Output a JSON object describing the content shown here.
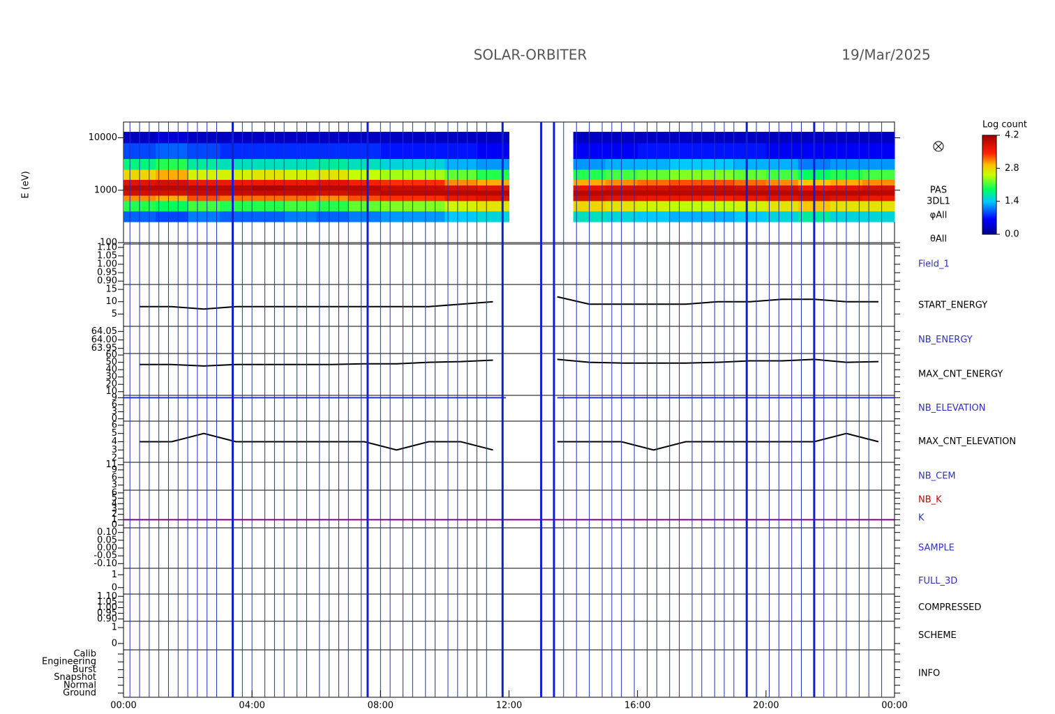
{
  "header": {
    "title": "SOLAR-ORBITER",
    "date": "19/Mar/2025"
  },
  "x_axis": {
    "xlim": [
      0,
      24
    ],
    "xticks": [
      {
        "value": 0,
        "label": "00:00"
      },
      {
        "value": 4,
        "label": "04:00"
      },
      {
        "value": 8,
        "label": "08:00"
      },
      {
        "value": 12,
        "label": "12:00"
      },
      {
        "value": 16,
        "label": "16:00"
      },
      {
        "value": 20,
        "label": "20:00"
      },
      {
        "value": 24,
        "label": "00:00"
      }
    ]
  },
  "events": [
    0.2,
    0.5,
    0.8,
    1.1,
    1.4,
    1.7,
    2.0,
    2.3,
    2.6,
    2.9,
    3.7,
    4.0,
    4.4,
    4.7,
    5.0,
    5.4,
    5.7,
    6.1,
    6.4,
    6.7,
    7.0,
    7.4,
    8.0,
    8.3,
    8.7,
    9.0,
    9.4,
    9.7,
    10.1,
    10.4,
    10.7,
    11.0,
    11.3,
    13.7,
    14.1,
    14.5,
    14.9,
    15.2,
    15.5,
    15.9,
    16.3,
    16.6,
    17.0,
    17.3,
    17.7,
    18.0,
    18.4,
    18.7,
    19.0,
    19.7,
    20.1,
    20.4,
    20.8,
    21.1,
    21.8,
    22.2,
    22.5,
    22.9,
    23.2,
    23.6
  ],
  "strong_events": [
    3.4,
    7.6,
    11.8,
    13.0,
    13.4,
    19.4,
    21.5
  ],
  "chart_data": [
    {
      "type": "heatmap",
      "ylabel": "E (eV)",
      "log_scale": true,
      "ylim": [
        100,
        20000
      ],
      "yticks": [
        100,
        1000,
        10000
      ],
      "labels": [
        "PAS",
        "3DL1",
        "φAll",
        "θAll"
      ],
      "label_color": "#000000",
      "time_bins": [
        0,
        1,
        2,
        3,
        4,
        5,
        6,
        7,
        8,
        9,
        10,
        11,
        12,
        13,
        14,
        15,
        16,
        17,
        18,
        19,
        20,
        21,
        22,
        23,
        24
      ],
      "energy_bins": [
        250,
        400,
        630,
        800,
        1000,
        1250,
        1600,
        2500,
        4000,
        8000,
        13000
      ],
      "log_counts": [
        [
          1.0,
          2.0,
          3.1,
          3.8,
          4.0,
          3.7,
          2.8,
          1.8,
          0.9,
          0.3
        ],
        [
          0.9,
          1.9,
          3.0,
          3.8,
          4.0,
          3.8,
          3.0,
          2.0,
          1.0,
          0.4
        ],
        [
          1.1,
          2.1,
          3.3,
          3.9,
          4.0,
          3.6,
          2.6,
          1.7,
          0.9,
          0.3
        ],
        [
          1.0,
          2.0,
          3.2,
          3.9,
          4.0,
          3.6,
          2.6,
          1.6,
          0.8,
          0.3
        ],
        [
          1.0,
          2.0,
          3.2,
          3.9,
          4.1,
          3.6,
          2.7,
          1.6,
          0.8,
          0.3
        ],
        [
          1.1,
          2.1,
          3.2,
          3.9,
          4.0,
          3.6,
          2.6,
          1.6,
          0.8,
          0.3
        ],
        [
          1.0,
          2.0,
          3.1,
          3.8,
          4.0,
          3.7,
          2.7,
          1.7,
          0.8,
          0.3
        ],
        [
          1.1,
          2.2,
          3.3,
          3.9,
          4.0,
          3.5,
          2.5,
          1.6,
          0.8,
          0.3
        ],
        [
          1.2,
          2.3,
          3.4,
          4.0,
          3.9,
          3.4,
          2.4,
          1.5,
          0.7,
          0.3
        ],
        [
          1.2,
          2.3,
          3.4,
          4.0,
          3.9,
          3.4,
          2.4,
          1.5,
          0.7,
          0.3
        ],
        [
          1.4,
          2.6,
          3.6,
          4.0,
          3.8,
          3.1,
          2.2,
          1.3,
          0.7,
          0.3
        ],
        [
          1.5,
          2.7,
          3.7,
          4.0,
          3.7,
          3.0,
          2.0,
          1.2,
          0.6,
          0.3
        ],
        null,
        null,
        [
          1.6,
          2.8,
          3.8,
          4.0,
          3.7,
          3.0,
          2.0,
          1.2,
          0.6,
          0.3
        ],
        [
          1.5,
          2.7,
          3.7,
          4.0,
          3.8,
          3.1,
          2.1,
          1.3,
          0.6,
          0.3
        ],
        [
          1.4,
          2.6,
          3.6,
          4.0,
          3.8,
          3.2,
          2.2,
          1.3,
          0.7,
          0.3
        ],
        [
          1.3,
          2.5,
          3.6,
          4.0,
          3.9,
          3.3,
          2.3,
          1.4,
          0.7,
          0.3
        ],
        [
          1.3,
          2.5,
          3.5,
          4.0,
          3.9,
          3.3,
          2.3,
          1.4,
          0.7,
          0.3
        ],
        [
          1.4,
          2.6,
          3.6,
          4.0,
          3.8,
          3.2,
          2.2,
          1.3,
          0.7,
          0.3
        ],
        [
          1.5,
          2.7,
          3.7,
          4.0,
          3.8,
          3.1,
          2.1,
          1.3,
          0.6,
          0.3
        ],
        [
          1.7,
          2.9,
          3.8,
          4.0,
          3.6,
          2.9,
          1.9,
          1.1,
          0.6,
          0.3
        ],
        [
          1.5,
          2.7,
          3.7,
          4.0,
          3.7,
          3.0,
          2.0,
          1.2,
          0.6,
          0.3
        ],
        [
          1.5,
          2.7,
          3.6,
          4.0,
          3.8,
          3.1,
          2.1,
          1.2,
          0.6,
          0.3
        ]
      ],
      "colorbar": {
        "title": "Log count",
        "lim": [
          0,
          4.2
        ],
        "ticks": [
          {
            "value": 0,
            "label": "0.0"
          },
          {
            "value": 1.4,
            "label": "1.4"
          },
          {
            "value": 2.8,
            "label": "2.8"
          },
          {
            "value": 4.2,
            "label": "4.2"
          }
        ]
      }
    },
    {
      "type": "line",
      "labels": [
        "Field_1"
      ],
      "label_color": "#3030c0",
      "ylim": [
        0.88,
        1.12
      ],
      "yticks": [
        {
          "value": 0.9,
          "label": "0.90"
        },
        {
          "value": 0.95,
          "label": "0.95"
        },
        {
          "value": 1.0,
          "label": "1.00"
        },
        {
          "value": 1.05,
          "label": "1.05"
        },
        {
          "value": 1.1,
          "label": "1.10"
        }
      ],
      "series": []
    },
    {
      "type": "line",
      "labels": [
        "START_ENERGY"
      ],
      "label_color": "#000000",
      "ylim": [
        0,
        17
      ],
      "yticks": [
        5,
        10,
        15
      ],
      "series": [
        {
          "color": "#000000",
          "x": [
            0.5,
            1.5,
            2.5,
            3.5,
            4.5,
            5.5,
            6.5,
            7.5,
            8.5,
            9.5,
            10.5,
            11.5,
            12.5,
            13.5,
            14.5,
            15.5,
            16.5,
            17.5,
            18.5,
            19.5,
            20.5,
            21.5,
            22.5,
            23.5
          ],
          "values": [
            8,
            8,
            7,
            8,
            8,
            8,
            8,
            8,
            8,
            8,
            9,
            10,
            null,
            12,
            9,
            9,
            9,
            9,
            10,
            10,
            11,
            11,
            10,
            10
          ]
        }
      ]
    },
    {
      "type": "line",
      "labels": [
        "NB_ENERGY"
      ],
      "label_color": "#3030c0",
      "ylim": [
        63.92,
        64.08
      ],
      "yticks": [
        {
          "value": 63.95,
          "label": "63.95"
        },
        {
          "value": 64.0,
          "label": "64.00"
        },
        {
          "value": 64.05,
          "label": "64.05"
        }
      ],
      "series": []
    },
    {
      "type": "line",
      "labels": [
        "MAX_CNT_ENERGY"
      ],
      "label_color": "#000000",
      "ylim": [
        5,
        62
      ],
      "yticks": [
        10,
        20,
        30,
        40,
        50,
        60
      ],
      "series": [
        {
          "color": "#000000",
          "x": [
            0.5,
            1.5,
            2.5,
            3.5,
            4.5,
            5.5,
            6.5,
            7.5,
            8.5,
            9.5,
            10.5,
            11.5,
            12.5,
            13.5,
            14.5,
            15.5,
            16.5,
            17.5,
            18.5,
            19.5,
            20.5,
            21.5,
            22.5,
            23.5
          ],
          "values": [
            47,
            47,
            45,
            47,
            47,
            47,
            47,
            48,
            48,
            50,
            51,
            53,
            null,
            54,
            50,
            49,
            49,
            49,
            50,
            52,
            52,
            54,
            50,
            51
          ]
        }
      ]
    },
    {
      "type": "line",
      "labels": [
        "NB_ELEVATION"
      ],
      "label_color": "#3030c0",
      "ylim": [
        -1,
        10
      ],
      "yticks": [
        0,
        3,
        6,
        9
      ],
      "series": [
        {
          "color": "#2030e0",
          "x": [
            0,
            11.9,
            12.5,
            13.5,
            24
          ],
          "values": [
            9,
            9,
            null,
            9,
            9
          ]
        }
      ]
    },
    {
      "type": "line",
      "labels": [
        "MAX_CNT_ELEVATION"
      ],
      "label_color": "#000000",
      "ylim": [
        1.5,
        6.5
      ],
      "yticks": [
        2,
        3,
        4,
        5,
        6
      ],
      "series": [
        {
          "color": "#000000",
          "x": [
            0.5,
            1.5,
            2.5,
            3.5,
            4.5,
            5.5,
            6.5,
            7.5,
            8.5,
            9.5,
            10.5,
            11.5,
            12.5,
            13.5,
            14.5,
            15.5,
            16.5,
            17.5,
            18.5,
            19.5,
            20.5,
            21.5,
            22.5,
            23.5
          ],
          "values": [
            4,
            4,
            5,
            4,
            4,
            4,
            4,
            4,
            3,
            4,
            4,
            3,
            null,
            4,
            4,
            4,
            3,
            4,
            4,
            4,
            4,
            4,
            5,
            4
          ]
        }
      ]
    },
    {
      "type": "line",
      "labels": [
        "NB_CEM"
      ],
      "label_color": "#3030c0",
      "ylim": [
        1,
        12
      ],
      "yticks": [
        3,
        6,
        9,
        11
      ],
      "series": []
    },
    {
      "type": "line",
      "labels": [
        "NB_K",
        "K"
      ],
      "label_color": [
        "#cc0000",
        "#3030c0"
      ],
      "ylim": [
        -0.5,
        6.5
      ],
      "yticks": [
        0,
        1,
        2,
        3,
        4,
        5,
        6
      ],
      "series": [
        {
          "color": "#800080",
          "x": [
            0,
            24
          ],
          "values": [
            1,
            1
          ]
        }
      ]
    },
    {
      "type": "line",
      "labels": [
        "SAMPLE"
      ],
      "label_color": "#3030c0",
      "ylim": [
        -0.13,
        0.13
      ],
      "yticks": [
        {
          "value": -0.1,
          "label": "-0.10"
        },
        {
          "value": -0.05,
          "label": "-0.05"
        },
        {
          "value": 0,
          "label": "0.00"
        },
        {
          "value": 0.05,
          "label": "0.05"
        },
        {
          "value": 0.1,
          "label": "0.10"
        }
      ],
      "series": []
    },
    {
      "type": "line",
      "labels": [
        "FULL_3D"
      ],
      "label_color": "#3030c0",
      "ylim": [
        -0.5,
        1.5
      ],
      "yticks": [
        0,
        1
      ],
      "series": []
    },
    {
      "type": "line",
      "labels": [
        "COMPRESSED"
      ],
      "label_color": "#000000",
      "ylim": [
        0.88,
        1.12
      ],
      "yticks": [
        {
          "value": 0.9,
          "label": "0.90"
        },
        {
          "value": 0.95,
          "label": "0.95"
        },
        {
          "value": 1.0,
          "label": "1.00"
        },
        {
          "value": 1.05,
          "label": "1.05"
        },
        {
          "value": 1.1,
          "label": "1.10"
        }
      ],
      "series": []
    },
    {
      "type": "line",
      "labels": [
        "SCHEME"
      ],
      "label_color": "#000000",
      "ylim": [
        -0.4,
        1.4
      ],
      "yticks": [
        0,
        1
      ],
      "series": []
    },
    {
      "type": "category",
      "labels": [
        "INFO"
      ],
      "label_color": "#000000",
      "categories": [
        "Ground",
        "Normal",
        "Snapshot",
        "Burst",
        "Engineering",
        "Calib"
      ]
    }
  ]
}
